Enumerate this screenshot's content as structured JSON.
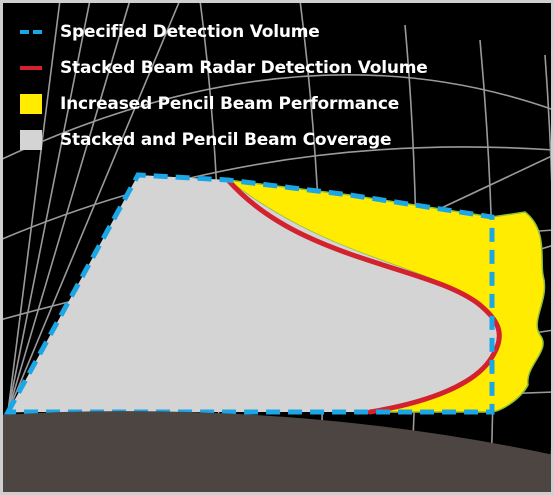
{
  "legend": [
    {
      "key": "specified",
      "label": "Specified Detection Volume",
      "color": "#1ba6e6",
      "symbol": "dashed-line"
    },
    {
      "key": "stacked",
      "label": "Stacked Beam Radar Detection Volume",
      "color": "#d3212d",
      "symbol": "solid-line"
    },
    {
      "key": "pencil",
      "label": "Increased Pencil Beam Performance",
      "color": "#ffec00",
      "symbol": "filled-box"
    },
    {
      "key": "coverage",
      "label": "Stacked and Pencil Beam Coverage",
      "color": "#d4d4d4",
      "symbol": "filled-box"
    }
  ],
  "colors": {
    "background": "#000000",
    "grid": "#9a9a9a",
    "ground": "#4c4541",
    "frame": "#cfcfcf"
  }
}
